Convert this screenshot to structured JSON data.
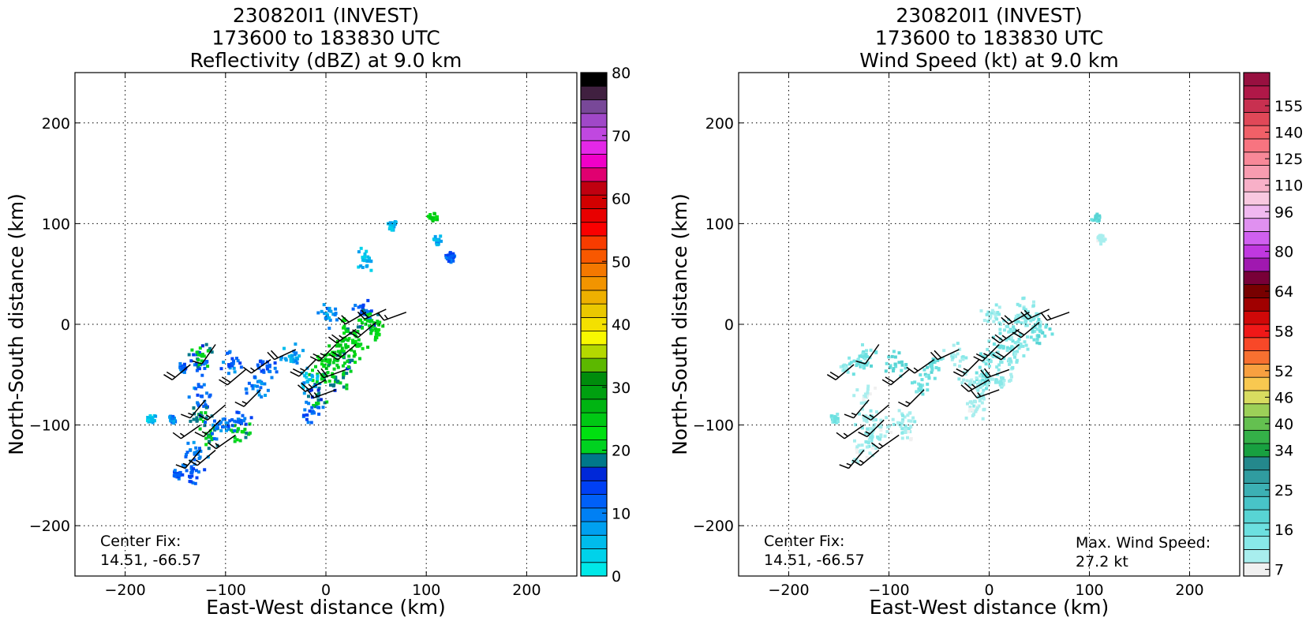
{
  "chart_data": [
    {
      "type": "heatmap",
      "title_lines": [
        "230820I1 (INVEST)",
        "173600 to 183830 UTC",
        "Reflectivity (dBZ) at 9.0 km"
      ],
      "xlabel": "East-West distance (km)",
      "ylabel": "North-South distance (km)",
      "xlim": [
        -250,
        250
      ],
      "ylim": [
        -250,
        250
      ],
      "xticks": [
        -200,
        -100,
        0,
        100,
        200
      ],
      "yticks": [
        -200,
        -100,
        0,
        100,
        200
      ],
      "xtick_labels": [
        "−200",
        "−100",
        "0",
        "100",
        "200"
      ],
      "ytick_labels": [
        "−200",
        "−100",
        "0",
        "100",
        "200"
      ],
      "grid": true,
      "annotation_left": [
        "Center Fix:",
        "14.51, -66.57"
      ],
      "annotation_right": [],
      "colorbar": {
        "min": 0,
        "max": 80,
        "tick_values": [
          0,
          10,
          20,
          30,
          40,
          50,
          60,
          70,
          80
        ],
        "tick_labels": [
          "0",
          "10",
          "20",
          "30",
          "40",
          "50",
          "60",
          "70",
          "80"
        ],
        "colors": [
          "#00e8e8",
          "#00d2ea",
          "#00bcec",
          "#00a0f0",
          "#0080f4",
          "#0060f8",
          "#0040f4",
          "#0028d8",
          "#00788a",
          "#00d220",
          "#00e010",
          "#00c814",
          "#00b412",
          "#00a010",
          "#008c0c",
          "#5cb800",
          "#b4d800",
          "#f8f800",
          "#f4e000",
          "#eac800",
          "#eeb000",
          "#f29400",
          "#f47800",
          "#f85800",
          "#f83c00",
          "#fa0000",
          "#e80000",
          "#d20000",
          "#c00010",
          "#e00070",
          "#f000c8",
          "#e428e8",
          "#c048e0",
          "#a048c8",
          "#784898",
          "#402040",
          "#000000"
        ]
      },
      "field_values": [
        {
          "x": 35,
          "y": 15,
          "dbz": 12
        },
        {
          "x": 40,
          "y": 5,
          "dbz": 20
        },
        {
          "x": 50,
          "y": -5,
          "dbz": 22
        },
        {
          "x": 20,
          "y": -5,
          "dbz": 21
        },
        {
          "x": 10,
          "y": -20,
          "dbz": 24
        },
        {
          "x": 30,
          "y": -20,
          "dbz": 23
        },
        {
          "x": 0,
          "y": -35,
          "dbz": 22
        },
        {
          "x": 20,
          "y": -35,
          "dbz": 20
        },
        {
          "x": -5,
          "y": -50,
          "dbz": 21
        },
        {
          "x": 10,
          "y": -55,
          "dbz": 19
        },
        {
          "x": -10,
          "y": -70,
          "dbz": 18
        },
        {
          "x": -15,
          "y": -85,
          "dbz": 12
        },
        {
          "x": 0,
          "y": 10,
          "dbz": 8
        },
        {
          "x": -20,
          "y": -55,
          "dbz": 6
        },
        {
          "x": -60,
          "y": -40,
          "dbz": 12
        },
        {
          "x": -35,
          "y": -30,
          "dbz": 8
        },
        {
          "x": -70,
          "y": -60,
          "dbz": 10
        },
        {
          "x": -95,
          "y": -38,
          "dbz": 11
        },
        {
          "x": -130,
          "y": -38,
          "dbz": 13
        },
        {
          "x": -145,
          "y": -42,
          "dbz": 11
        },
        {
          "x": -125,
          "y": -30,
          "dbz": 20
        },
        {
          "x": -125,
          "y": -70,
          "dbz": 11
        },
        {
          "x": -125,
          "y": -90,
          "dbz": 19
        },
        {
          "x": -118,
          "y": -110,
          "dbz": 21
        },
        {
          "x": -110,
          "y": -100,
          "dbz": 10
        },
        {
          "x": -85,
          "y": -105,
          "dbz": 22
        },
        {
          "x": -88,
          "y": -95,
          "dbz": 12
        },
        {
          "x": -130,
          "y": -125,
          "dbz": 9
        },
        {
          "x": -155,
          "y": -92,
          "dbz": 9
        },
        {
          "x": -175,
          "y": -92,
          "dbz": 5
        },
        {
          "x": -150,
          "y": -148,
          "dbz": 12
        },
        {
          "x": -135,
          "y": -145,
          "dbz": 12
        },
        {
          "x": 65,
          "y": 100,
          "dbz": 5
        },
        {
          "x": 105,
          "y": 107,
          "dbz": 24
        },
        {
          "x": 110,
          "y": 85,
          "dbz": 6
        },
        {
          "x": 122,
          "y": 68,
          "dbz": 12
        },
        {
          "x": 37,
          "y": 65,
          "dbz": 5
        }
      ]
    },
    {
      "type": "heatmap",
      "title_lines": [
        "230820I1 (INVEST)",
        "173600 to 183830 UTC",
        "Wind Speed (kt) at 9.0 km"
      ],
      "xlabel": "East-West distance (km)",
      "ylabel": "North-South distance (km)",
      "xlim": [
        -250,
        250
      ],
      "ylim": [
        -250,
        250
      ],
      "xticks": [
        -200,
        -100,
        0,
        100,
        200
      ],
      "yticks": [
        -200,
        -100,
        0,
        100,
        200
      ],
      "xtick_labels": [
        "−200",
        "−100",
        "0",
        "100",
        "200"
      ],
      "ytick_labels": [
        "−200",
        "−100",
        "0",
        "100",
        "200"
      ],
      "grid": true,
      "annotation_left": [
        "Center Fix:",
        "14.51, -66.57"
      ],
      "annotation_right": [
        "Max. Wind Speed:",
        "27.2 kt"
      ],
      "colorbar": {
        "min": 7,
        "max": 160,
        "tick_values": [
          7,
          16,
          25,
          34,
          40,
          46,
          52,
          58,
          64,
          80,
          96,
          110,
          125,
          140,
          155
        ],
        "tick_labels": [
          "7",
          "16",
          "25",
          "34",
          "40",
          "46",
          "52",
          "58",
          "64",
          "80",
          "96",
          "110",
          "125",
          "140",
          "155"
        ],
        "colors": [
          "#f0f0f0",
          "#a8eeee",
          "#88e8e8",
          "#6ce0e0",
          "#58d4d4",
          "#48c4c8",
          "#3cb0b4",
          "#309ca0",
          "#24888c",
          "#18a040",
          "#34b048",
          "#64c050",
          "#9cd058",
          "#d8dc60",
          "#f8c850",
          "#f8a040",
          "#f87030",
          "#f84828",
          "#f01818",
          "#d00808",
          "#a00000",
          "#780000",
          "#780038",
          "#a018b0",
          "#c038e0",
          "#d060f0",
          "#e090f0",
          "#f0b8f0",
          "#f8c8e0",
          "#f8b0c8",
          "#f89cb0",
          "#f88898",
          "#f87480",
          "#f06068",
          "#e04858",
          "#c83050",
          "#b01848",
          "#981040"
        ]
      },
      "field_values": [
        {
          "x": 35,
          "y": 15,
          "kt": 16
        },
        {
          "x": 40,
          "y": 5,
          "kt": 17
        },
        {
          "x": 50,
          "y": -5,
          "kt": 22
        },
        {
          "x": 20,
          "y": -5,
          "kt": 18
        },
        {
          "x": 10,
          "y": -20,
          "kt": 21
        },
        {
          "x": 30,
          "y": -20,
          "kt": 17
        },
        {
          "x": 0,
          "y": -35,
          "kt": 18
        },
        {
          "x": 20,
          "y": -35,
          "kt": 16
        },
        {
          "x": -5,
          "y": -50,
          "kt": 21
        },
        {
          "x": 10,
          "y": -55,
          "kt": 16
        },
        {
          "x": -10,
          "y": -70,
          "kt": 15
        },
        {
          "x": -15,
          "y": -85,
          "kt": 12
        },
        {
          "x": 0,
          "y": 10,
          "kt": 14
        },
        {
          "x": -20,
          "y": -55,
          "kt": 13
        },
        {
          "x": -60,
          "y": -40,
          "kt": 22
        },
        {
          "x": -35,
          "y": -30,
          "kt": 14
        },
        {
          "x": -70,
          "y": -60,
          "kt": 20
        },
        {
          "x": -95,
          "y": -38,
          "kt": 24
        },
        {
          "x": -130,
          "y": -38,
          "kt": 21
        },
        {
          "x": -145,
          "y": -42,
          "kt": 15
        },
        {
          "x": -125,
          "y": -30,
          "kt": 20
        },
        {
          "x": -125,
          "y": -70,
          "kt": 12
        },
        {
          "x": -125,
          "y": -90,
          "kt": 14
        },
        {
          "x": -118,
          "y": -110,
          "kt": 16
        },
        {
          "x": -110,
          "y": -100,
          "kt": 13
        },
        {
          "x": -85,
          "y": -105,
          "kt": 12
        },
        {
          "x": -88,
          "y": -95,
          "kt": 14
        },
        {
          "x": -130,
          "y": -125,
          "kt": 12
        },
        {
          "x": -155,
          "y": -92,
          "kt": 20
        },
        {
          "x": 105,
          "y": 107,
          "kt": 24
        },
        {
          "x": 110,
          "y": 85,
          "kt": 13
        }
      ]
    }
  ],
  "wind_barbs": [
    {
      "x": 40,
      "y": 12,
      "dir": 240,
      "kt": 20
    },
    {
      "x": 60,
      "y": 15,
      "dir": 245,
      "kt": 20
    },
    {
      "x": 80,
      "y": 12,
      "dir": 250,
      "kt": 15
    },
    {
      "x": 50,
      "y": 2,
      "dir": 230,
      "kt": 20
    },
    {
      "x": 30,
      "y": -5,
      "dir": 235,
      "kt": 25
    },
    {
      "x": 10,
      "y": -20,
      "dir": 225,
      "kt": 25
    },
    {
      "x": 30,
      "y": -20,
      "dir": 230,
      "kt": 20
    },
    {
      "x": -10,
      "y": -35,
      "dir": 225,
      "kt": 25
    },
    {
      "x": 20,
      "y": -45,
      "dir": 250,
      "kt": 20
    },
    {
      "x": 0,
      "y": -55,
      "dir": 240,
      "kt": 25
    },
    {
      "x": 10,
      "y": -65,
      "dir": 250,
      "kt": 15
    },
    {
      "x": -30,
      "y": -25,
      "dir": 245,
      "kt": 20
    },
    {
      "x": -55,
      "y": -35,
      "dir": 235,
      "kt": 15
    },
    {
      "x": -80,
      "y": -45,
      "dir": 230,
      "kt": 20
    },
    {
      "x": -65,
      "y": -65,
      "dir": 225,
      "kt": 15
    },
    {
      "x": -135,
      "y": -40,
      "dir": 230,
      "kt": 20
    },
    {
      "x": -110,
      "y": -20,
      "dir": 215,
      "kt": 10
    },
    {
      "x": -120,
      "y": -75,
      "dir": 220,
      "kt": 15
    },
    {
      "x": -100,
      "y": -80,
      "dir": 230,
      "kt": 15
    },
    {
      "x": -125,
      "y": -100,
      "dir": 235,
      "kt": 15
    },
    {
      "x": -105,
      "y": -95,
      "dir": 225,
      "kt": 15
    },
    {
      "x": -90,
      "y": -110,
      "dir": 235,
      "kt": 15
    },
    {
      "x": -125,
      "y": -125,
      "dir": 220,
      "kt": 15
    },
    {
      "x": -110,
      "y": -125,
      "dir": 230,
      "kt": 15
    }
  ]
}
